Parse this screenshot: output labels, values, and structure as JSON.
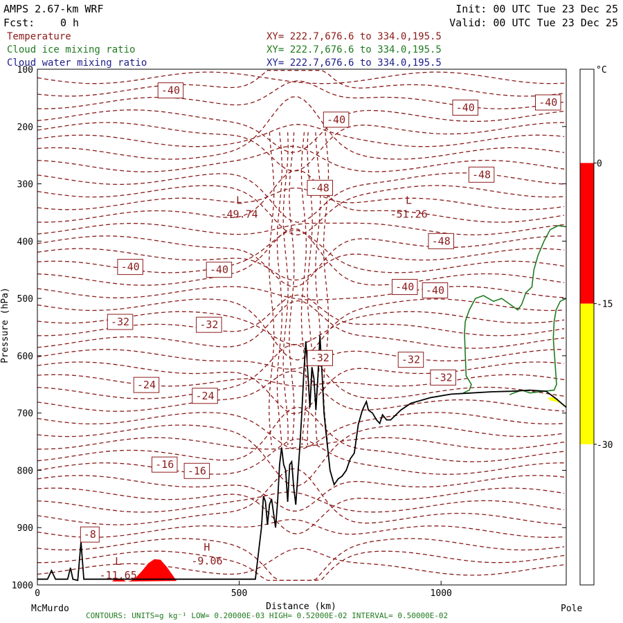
{
  "header": {
    "model": "AMPS 2.67-km WRF",
    "forecast_label": "Fcst:",
    "forecast_value": "0 h",
    "init": "Init: 00 UTC Tue 23 Dec 25",
    "valid": "Valid: 00 UTC Tue 23 Dec 25"
  },
  "legend": [
    {
      "name": "Temperature",
      "xy": "XY= 222.7,676.6 to 334.0,195.5",
      "color": "#8b1a1a"
    },
    {
      "name": "Cloud ice mixing ratio",
      "xy": "XY= 222.7,676.6 to 334.0,195.5",
      "color": "#1f7a1f"
    },
    {
      "name": "Cloud water mixing ratio",
      "xy": "XY= 222.7,676.6 to 334.0,195.5",
      "color": "#1c1c8c"
    }
  ],
  "colorbar": {
    "unit": "°C",
    "ticks": [
      "0",
      "-15",
      "-30"
    ],
    "segments": [
      {
        "from": 10,
        "to": 0,
        "color": "#ffffff"
      },
      {
        "from": 0,
        "to": -15,
        "color": "#ff0000"
      },
      {
        "from": -15,
        "to": -30,
        "color": "#ffff00"
      },
      {
        "from": -30,
        "to": -45,
        "color": "#ffffff"
      }
    ]
  },
  "footer": "CONTOURS:  UNITS=g kg⁻¹  LOW= 0.20000E-03  HIGH= 0.52000E-02  INTERVAL=  0.50000E-02",
  "chart_data": {
    "type": "cross-section",
    "xlabel": "Distance (km)",
    "ylabel": "Pressure (hPa)",
    "xlim": [
      0,
      1310
    ],
    "ylim": [
      1000,
      100
    ],
    "x_ticks": [
      0,
      500,
      1000
    ],
    "y_ticks": [
      100,
      200,
      300,
      400,
      500,
      600,
      700,
      800,
      900,
      1000
    ],
    "x_endpoints": {
      "left": "McMurdo",
      "right": "Pole"
    },
    "terrain": [
      [
        0,
        990
      ],
      [
        25,
        990
      ],
      [
        35,
        975
      ],
      [
        45,
        990
      ],
      [
        75,
        990
      ],
      [
        82,
        970
      ],
      [
        88,
        990
      ],
      [
        100,
        992
      ],
      [
        108,
        925
      ],
      [
        115,
        990
      ],
      [
        540,
        990
      ],
      [
        555,
        900
      ],
      [
        560,
        845
      ],
      [
        565,
        855
      ],
      [
        570,
        895
      ],
      [
        575,
        860
      ],
      [
        580,
        850
      ],
      [
        590,
        900
      ],
      [
        595,
        855
      ],
      [
        600,
        790
      ],
      [
        605,
        760
      ],
      [
        610,
        790
      ],
      [
        615,
        800
      ],
      [
        620,
        855
      ],
      [
        625,
        790
      ],
      [
        630,
        785
      ],
      [
        635,
        830
      ],
      [
        640,
        860
      ],
      [
        645,
        810
      ],
      [
        650,
        760
      ],
      [
        655,
        700
      ],
      [
        660,
        630
      ],
      [
        665,
        575
      ],
      [
        670,
        630
      ],
      [
        675,
        690
      ],
      [
        680,
        620
      ],
      [
        685,
        640
      ],
      [
        690,
        695
      ],
      [
        695,
        635
      ],
      [
        700,
        565
      ],
      [
        705,
        630
      ],
      [
        710,
        700
      ],
      [
        715,
        735
      ],
      [
        725,
        800
      ],
      [
        735,
        825
      ],
      [
        745,
        815
      ],
      [
        755,
        810
      ],
      [
        765,
        800
      ],
      [
        775,
        780
      ],
      [
        785,
        770
      ],
      [
        795,
        720
      ],
      [
        805,
        695
      ],
      [
        815,
        680
      ],
      [
        820,
        695
      ],
      [
        830,
        700
      ],
      [
        840,
        712
      ],
      [
        848,
        718
      ],
      [
        855,
        703
      ],
      [
        865,
        712
      ],
      [
        875,
        712
      ],
      [
        900,
        695
      ],
      [
        925,
        683
      ],
      [
        975,
        673
      ],
      [
        1025,
        667
      ],
      [
        1075,
        665
      ],
      [
        1125,
        663
      ],
      [
        1175,
        662
      ],
      [
        1220,
        660
      ],
      [
        1260,
        662
      ],
      [
        1285,
        675
      ],
      [
        1310,
        690
      ]
    ],
    "temperature_contour_labels": [
      {
        "x": 330,
        "p": 137,
        "v": "-40"
      },
      {
        "x": 740,
        "p": 188,
        "v": "-40"
      },
      {
        "x": 1060,
        "p": 167,
        "v": "-40"
      },
      {
        "x": 1265,
        "p": 158,
        "v": "-40"
      },
      {
        "x": 700,
        "p": 307,
        "v": "-48"
      },
      {
        "x": 1100,
        "p": 284,
        "v": "-48"
      },
      {
        "x": 1000,
        "p": 400,
        "v": "-48"
      },
      {
        "x": 230,
        "p": 445,
        "v": "-40"
      },
      {
        "x": 450,
        "p": 450,
        "v": "-40"
      },
      {
        "x": 910,
        "p": 480,
        "v": "-40"
      },
      {
        "x": 985,
        "p": 486,
        "v": "-40"
      },
      {
        "x": 205,
        "p": 541,
        "v": "-32"
      },
      {
        "x": 425,
        "p": 546,
        "v": "-32"
      },
      {
        "x": 700,
        "p": 604,
        "v": "-32"
      },
      {
        "x": 925,
        "p": 607,
        "v": "-32"
      },
      {
        "x": 1005,
        "p": 638,
        "v": "-32"
      },
      {
        "x": 270,
        "p": 651,
        "v": "-24"
      },
      {
        "x": 415,
        "p": 670,
        "v": "-24"
      },
      {
        "x": 315,
        "p": 790,
        "v": "-16"
      },
      {
        "x": 395,
        "p": 801,
        "v": "-16"
      },
      {
        "x": 130,
        "p": 912,
        "v": "-8"
      }
    ],
    "extremes": [
      {
        "x": 500,
        "p": 340,
        "label": "L",
        "value": "-49.74"
      },
      {
        "x": 920,
        "p": 340,
        "label": "L",
        "value": "-51.26"
      },
      {
        "x": 420,
        "p": 945,
        "label": "H",
        "value": "-9.06"
      },
      {
        "x": 200,
        "p": 970,
        "label": "L",
        "value": "-11.65"
      }
    ],
    "cloud_ice_contours": [
      [
        [
          1310,
          375
        ],
        [
          1290,
          373
        ],
        [
          1270,
          380
        ],
        [
          1255,
          400
        ],
        [
          1240,
          425
        ],
        [
          1230,
          450
        ],
        [
          1225,
          480
        ],
        [
          1210,
          490
        ],
        [
          1200,
          510
        ],
        [
          1190,
          520
        ],
        [
          1170,
          510
        ],
        [
          1150,
          500
        ],
        [
          1130,
          505
        ],
        [
          1105,
          495
        ],
        [
          1085,
          500
        ],
        [
          1070,
          520
        ],
        [
          1060,
          540
        ],
        [
          1058,
          560
        ],
        [
          1060,
          600
        ],
        [
          1062,
          635
        ],
        [
          1075,
          650
        ],
        [
          1070,
          660
        ],
        [
          1055,
          665
        ]
      ],
      [
        [
          1310,
          500
        ],
        [
          1295,
          505
        ],
        [
          1285,
          520
        ],
        [
          1280,
          540
        ],
        [
          1278,
          570
        ],
        [
          1282,
          610
        ],
        [
          1286,
          650
        ],
        [
          1280,
          660
        ],
        [
          1255,
          662
        ],
        [
          1220,
          665
        ],
        [
          1200,
          660
        ],
        [
          1180,
          665
        ],
        [
          1170,
          668
        ]
      ]
    ],
    "shaded_temperature_regions": [
      {
        "color": "#ff0000",
        "points": [
          [
            225,
            994
          ],
          [
            240,
            990
          ],
          [
            260,
            975
          ],
          [
            275,
            962
          ],
          [
            290,
            955
          ],
          [
            305,
            956
          ],
          [
            320,
            968
          ],
          [
            335,
            983
          ],
          [
            345,
            993
          ]
        ]
      },
      {
        "color": "#ff0000",
        "points": [
          [
            185,
            994
          ],
          [
            195,
            988
          ],
          [
            210,
            990
          ],
          [
            220,
            994
          ]
        ]
      },
      {
        "color": "#ffff00",
        "points": [
          [
            1265,
            674
          ],
          [
            1275,
            672
          ],
          [
            1285,
            676
          ],
          [
            1295,
            684
          ],
          [
            1310,
            687
          ],
          [
            1310,
            690
          ],
          [
            1285,
            680
          ],
          [
            1270,
            678
          ]
        ]
      }
    ]
  }
}
